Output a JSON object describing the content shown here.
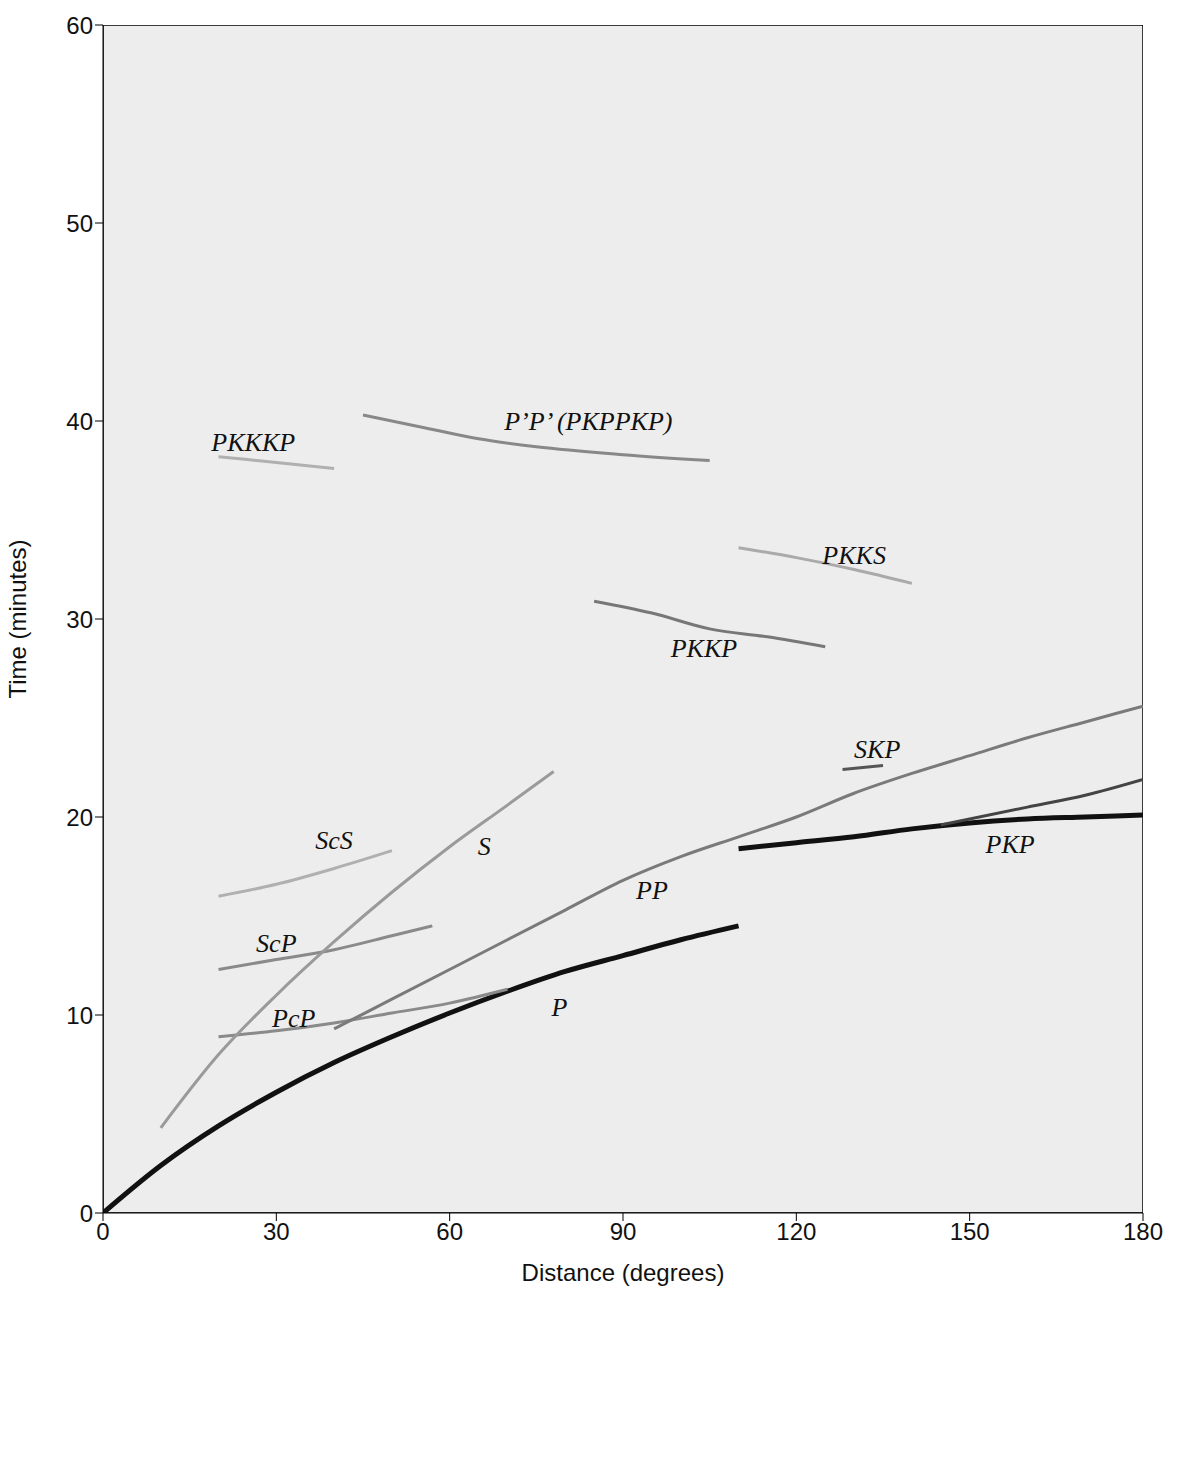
{
  "chart_data": {
    "type": "line",
    "x_label": "Distance (degrees)",
    "y_label": "Time (minutes)",
    "xlim": [
      0,
      180
    ],
    "xticks": [
      0,
      30,
      60,
      90,
      120,
      150,
      180
    ],
    "ylim": [
      0,
      60
    ],
    "yticks": [
      0,
      10,
      20,
      30,
      40,
      50,
      60
    ],
    "grid": false,
    "series": [
      {
        "color": "#111111",
        "x": [
          0,
          10,
          20,
          30,
          40,
          50,
          60,
          70,
          80,
          90,
          100,
          110
        ],
        "values": [
          0,
          2.4,
          4.4,
          6.1,
          7.6,
          8.9,
          10.1,
          11.2,
          12.2,
          13.0,
          13.8,
          14.5
        ]
      },
      {
        "color": "#8a8a8a",
        "x": [
          20,
          30,
          40,
          50,
          60,
          70
        ],
        "values": [
          8.9,
          9.2,
          9.6,
          10.1,
          10.6,
          11.3
        ]
      },
      {
        "color": "#8a8a8a",
        "x": [
          20,
          30,
          40,
          50,
          57
        ],
        "values": [
          12.3,
          12.8,
          13.3,
          14.0,
          14.5
        ]
      },
      {
        "color": "#b0b0b0",
        "x": [
          20,
          30,
          40,
          50
        ],
        "values": [
          16.0,
          16.6,
          17.4,
          18.3
        ]
      },
      {
        "color": "#9a9a9a",
        "x": [
          10,
          20,
          30,
          40,
          50,
          60,
          70,
          78
        ],
        "values": [
          4.3,
          8.0,
          11.0,
          13.7,
          16.2,
          18.5,
          20.6,
          22.3
        ]
      },
      {
        "color": "#7a7a7a",
        "x": [
          40,
          50,
          60,
          70,
          80,
          90,
          100,
          110,
          120,
          130,
          140,
          150,
          160,
          170,
          180
        ],
        "values": [
          9.3,
          10.8,
          12.3,
          13.8,
          15.3,
          16.8,
          18.0,
          19.0,
          20.0,
          21.2,
          22.2,
          23.1,
          24.0,
          24.8,
          25.6
        ]
      },
      {
        "color": "#111111",
        "x": [
          110,
          120,
          130,
          140,
          150,
          160,
          170,
          180
        ],
        "values": [
          18.4,
          18.7,
          19.0,
          19.4,
          19.7,
          19.9,
          20.0,
          20.1
        ]
      },
      {
        "color": "#444444",
        "x": [
          145,
          160,
          170,
          180
        ],
        "values": [
          19.6,
          20.5,
          21.1,
          21.9
        ]
      },
      {
        "color": "#555555",
        "x": [
          128,
          135
        ],
        "values": [
          22.4,
          22.6
        ]
      },
      {
        "color": "#777777",
        "x": [
          85,
          95,
          105,
          115,
          125
        ],
        "values": [
          30.9,
          30.3,
          29.5,
          29.1,
          28.6
        ]
      },
      {
        "color": "#aaaaaa",
        "x": [
          110,
          120,
          130,
          140
        ],
        "values": [
          33.6,
          33.1,
          32.5,
          31.8
        ]
      },
      {
        "color": "#888888",
        "x": [
          45,
          55,
          65,
          75,
          90,
          105
        ],
        "values": [
          40.3,
          39.7,
          39.1,
          38.7,
          38.3,
          38.0
        ]
      },
      {
        "color": "#b0b0b0",
        "x": [
          20,
          30,
          40
        ],
        "values": [
          38.2,
          37.9,
          37.6
        ]
      }
    ],
    "annotations": [
      {
        "text": "PKKKP",
        "x": 26,
        "y": 38.9
      },
      {
        "text": "P’P’ (PKPPKP)",
        "x": 84,
        "y": 40.0
      },
      {
        "text": "PKKS",
        "x": 130,
        "y": 33.2
      },
      {
        "text": "PKKP",
        "x": 104,
        "y": 28.5
      },
      {
        "text": "SKP",
        "x": 134,
        "y": 23.4
      },
      {
        "text": "ScS",
        "x": 40,
        "y": 18.8
      },
      {
        "text": "S",
        "x": 66,
        "y": 18.5
      },
      {
        "text": "PP",
        "x": 95,
        "y": 16.3
      },
      {
        "text": "PKP",
        "x": 157,
        "y": 18.6
      },
      {
        "text": "ScP",
        "x": 30,
        "y": 13.6
      },
      {
        "text": "PcP",
        "x": 33,
        "y": 9.8
      },
      {
        "text": "P",
        "x": 79,
        "y": 10.4
      }
    ]
  }
}
